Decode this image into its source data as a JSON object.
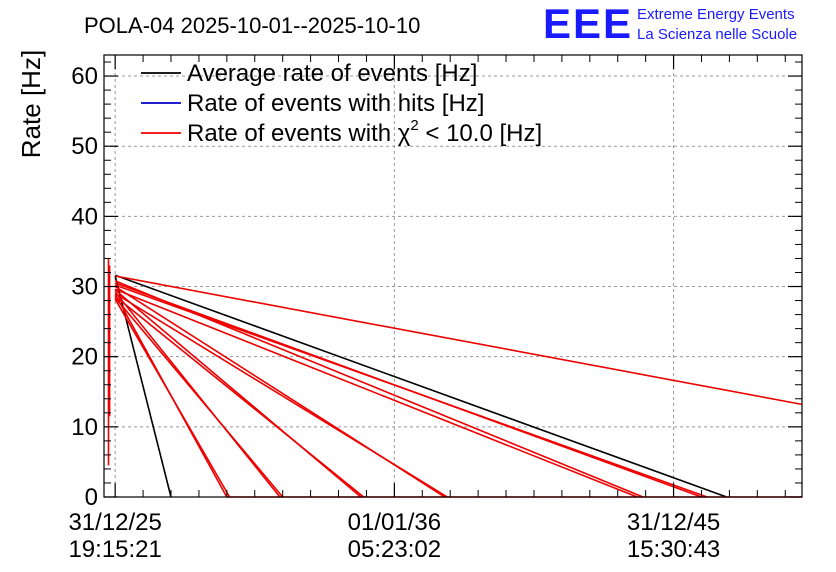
{
  "chart_data": {
    "type": "line",
    "title": "POLA-04 2025-10-01--2025-10-10",
    "ylabel": "Rate [Hz]",
    "xlabel": "",
    "ylim": [
      0,
      63
    ],
    "yticks": [
      0,
      10,
      20,
      30,
      40,
      50,
      60
    ],
    "xlim": [
      -0.2,
      12.3
    ],
    "xticks": [
      {
        "x": 0.0,
        "date": "31/12/25",
        "time": "19:15:21"
      },
      {
        "x": 5.0,
        "date": "01/01/36",
        "time": "05:23:02"
      },
      {
        "x": 10.0,
        "date": "31/12/45",
        "time": "15:30:43"
      }
    ],
    "grid": true,
    "legend": {
      "position": "top-left",
      "entries": [
        {
          "label": "Average rate of events [Hz]",
          "color": "#000000"
        },
        {
          "label": "Rate of events with hits [Hz]",
          "color": "#0000cc"
        },
        {
          "label_prefix": "Rate of events with ",
          "label_symbol": "χ",
          "label_sup": "2",
          "label_suffix": " < 10.0 [Hz]",
          "color": "#ee0000"
        }
      ]
    },
    "series": [
      {
        "name": "Average rate of events [Hz]",
        "color": "#000000",
        "segments": [
          [
            [
              0.0,
              31.5
            ],
            [
              1.0,
              0.0
            ]
          ],
          [
            [
              0.0,
              31.6
            ],
            [
              10.95,
              0.0
            ]
          ]
        ]
      },
      {
        "name": "Rate of events with hits [Hz]",
        "color": "#0000cc",
        "segments": []
      },
      {
        "name": "Rate of events with χ2 < 10.0 [Hz]",
        "color": "#ee0000",
        "segments": [
          [
            [
              -0.12,
              4.5
            ],
            [
              -0.12,
              34.0
            ]
          ],
          [
            [
              -0.1,
              11.5
            ],
            [
              -0.1,
              33.0
            ]
          ],
          [
            [
              0.0,
              31.5
            ],
            [
              12.3,
              13.2
            ]
          ],
          [
            [
              0.0,
              30.5
            ],
            [
              10.5,
              0.0
            ]
          ],
          [
            [
              0.0,
              29.6
            ],
            [
              9.35,
              0.0
            ]
          ],
          [
            [
              0.0,
              30.0
            ],
            [
              5.9,
              0.0
            ]
          ],
          [
            [
              0.0,
              29.5
            ],
            [
              4.4,
              0.0
            ]
          ],
          [
            [
              0.0,
              29.2
            ],
            [
              2.95,
              0.0
            ]
          ],
          [
            [
              0.0,
              28.9
            ],
            [
              2.0,
              0.0
            ]
          ],
          [
            [
              0.0,
              30.2
            ],
            [
              10.6,
              0.0
            ]
          ],
          [
            [
              0.0,
              30.8
            ],
            [
              9.45,
              0.0
            ]
          ],
          [
            [
              0.0,
              29.0
            ],
            [
              5.95,
              0.0
            ]
          ],
          [
            [
              0.0,
              28.6
            ],
            [
              4.45,
              0.0
            ]
          ],
          [
            [
              0.0,
              28.4
            ],
            [
              3.0,
              0.0
            ]
          ],
          [
            [
              0.0,
              28.2
            ],
            [
              2.05,
              0.0
            ]
          ],
          [
            [
              2.0,
              0.0
            ],
            [
              12.3,
              0.0
            ]
          ]
        ]
      }
    ]
  },
  "brand": {
    "logo_text": "EEE",
    "line1": "Extreme Energy Events",
    "line2": "La Scienza nelle Scuole",
    "color": "#1a1aff"
  }
}
